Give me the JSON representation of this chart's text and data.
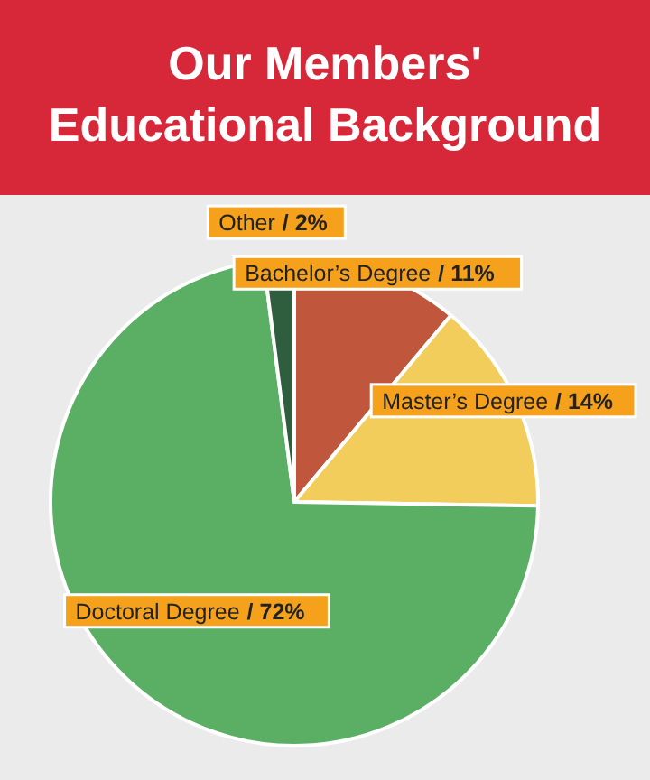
{
  "chart_data": {
    "type": "pie",
    "title": "Our Members' Educational Background",
    "categories": [
      "Bachelor’s Degree",
      "Master’s Degree",
      "Doctoral Degree",
      "Other"
    ],
    "values": [
      11,
      14,
      72,
      2
    ],
    "value_labels": [
      "/ 11%",
      "/ 14%",
      "/ 72%",
      "/ 2%"
    ],
    "colors": [
      "#c0573d",
      "#f2cd5c",
      "#5aaf64",
      "#2e5e3e"
    ]
  }
}
